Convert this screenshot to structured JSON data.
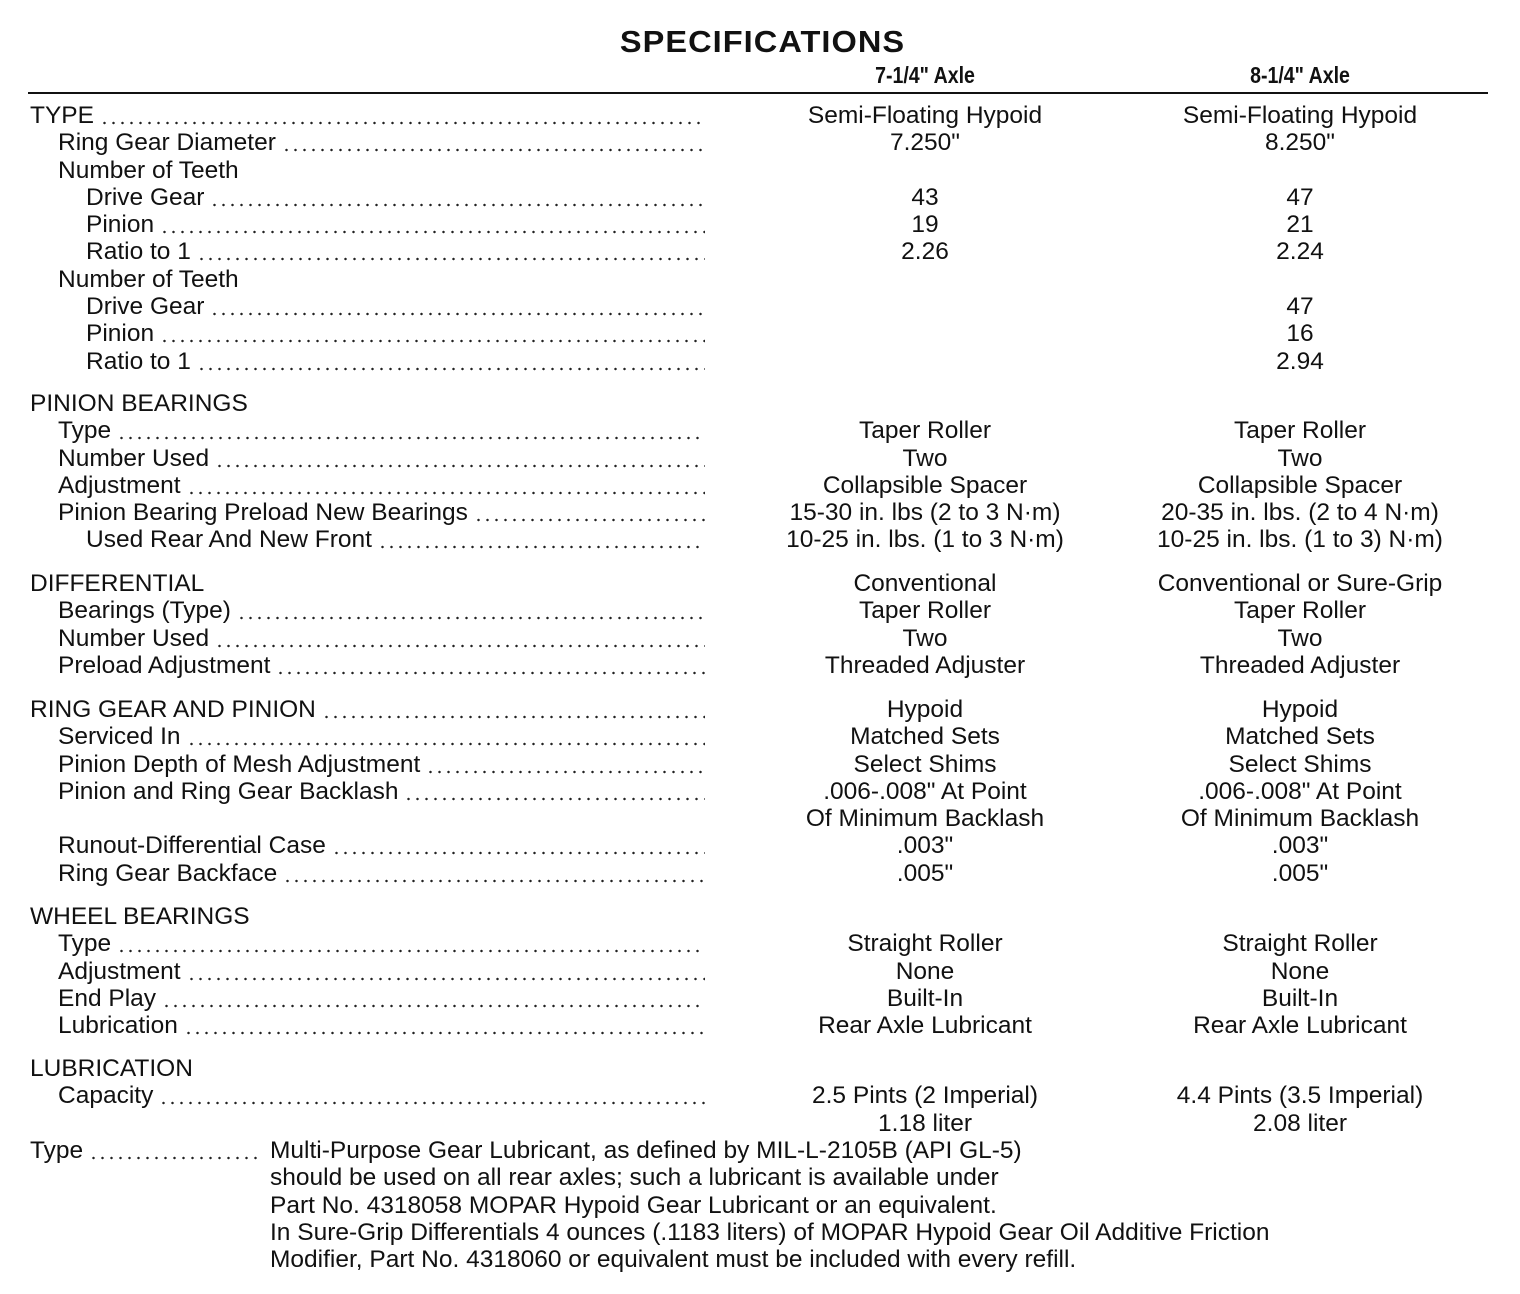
{
  "title": "SPECIFICATIONS",
  "columns": [
    "7-1/4\" Axle",
    "8-1/4\" Axle"
  ],
  "sections": [
    {
      "rows": [
        {
          "label": "TYPE",
          "indent": 0,
          "dots": true,
          "v1": "Semi-Floating Hypoid",
          "v2": "Semi-Floating Hypoid"
        },
        {
          "label": "Ring Gear Diameter",
          "indent": 1,
          "dots": true,
          "v1": "7.250\"",
          "v2": "8.250\""
        },
        {
          "label": "Number of Teeth",
          "indent": 1,
          "dots": false,
          "v1": "",
          "v2": ""
        },
        {
          "label": "Drive Gear",
          "indent": 2,
          "dots": true,
          "v1": "43",
          "v2": "47"
        },
        {
          "label": "Pinion",
          "indent": 2,
          "dots": true,
          "v1": "19",
          "v2": "21"
        },
        {
          "label": "Ratio to 1",
          "indent": 2,
          "dots": true,
          "v1": "2.26",
          "v2": "2.24"
        },
        {
          "label": "Number of Teeth",
          "indent": 1,
          "dots": false,
          "v1": "",
          "v2": ""
        },
        {
          "label": "Drive Gear",
          "indent": 2,
          "dots": true,
          "v1": "",
          "v2": "47"
        },
        {
          "label": "Pinion",
          "indent": 2,
          "dots": true,
          "v1": "",
          "v2": "16"
        },
        {
          "label": "Ratio to 1",
          "indent": 2,
          "dots": true,
          "v1": "",
          "v2": "2.94"
        }
      ]
    },
    {
      "rows": [
        {
          "label": "PINION BEARINGS",
          "indent": 0,
          "dots": false,
          "v1": "",
          "v2": ""
        },
        {
          "label": "Type",
          "indent": 1,
          "dots": true,
          "v1": "Taper Roller",
          "v2": "Taper Roller"
        },
        {
          "label": "Number Used",
          "indent": 1,
          "dots": true,
          "v1": "Two",
          "v2": "Two"
        },
        {
          "label": "Adjustment",
          "indent": 1,
          "dots": true,
          "v1": "Collapsible Spacer",
          "v2": "Collapsible Spacer"
        },
        {
          "label": "Pinion Bearing Preload New Bearings",
          "indent": 1,
          "dots": true,
          "v1": "15-30 in. lbs (2 to 3 N·m)",
          "v2": "20-35 in. lbs. (2 to 4 N·m)"
        },
        {
          "label": "Used Rear And New Front",
          "indent": 2,
          "dots": true,
          "v1": "10-25 in. lbs. (1 to 3 N·m)",
          "v2": "10-25 in. lbs. (1 to 3) N·m)"
        }
      ]
    },
    {
      "rows": [
        {
          "label": "DIFFERENTIAL",
          "indent": 0,
          "dots": false,
          "v1": "Conventional",
          "v2": "Conventional or Sure-Grip"
        },
        {
          "label": "Bearings (Type)",
          "indent": 1,
          "dots": true,
          "v1": "Taper Roller",
          "v2": "Taper Roller"
        },
        {
          "label": "Number Used",
          "indent": 1,
          "dots": true,
          "v1": "Two",
          "v2": "Two"
        },
        {
          "label": "Preload Adjustment",
          "indent": 1,
          "dots": true,
          "v1": "Threaded Adjuster",
          "v2": "Threaded Adjuster"
        }
      ]
    },
    {
      "rows": [
        {
          "label": "RING GEAR AND PINION",
          "indent": 0,
          "dots": true,
          "v1": "Hypoid",
          "v2": "Hypoid"
        },
        {
          "label": "Serviced In",
          "indent": 1,
          "dots": true,
          "v1": "Matched Sets",
          "v2": "Matched Sets"
        },
        {
          "label": "Pinion Depth of Mesh Adjustment",
          "indent": 1,
          "dots": true,
          "v1": "Select Shims",
          "v2": "Select Shims"
        },
        {
          "label": "Pinion and Ring Gear Backlash",
          "indent": 1,
          "dots": true,
          "v1": ".006-.008\" At Point",
          "v2": ".006-.008\" At Point"
        },
        {
          "label": "",
          "indent": 1,
          "dots": false,
          "v1": "Of Minimum Backlash",
          "v2": "Of Minimum Backlash"
        },
        {
          "label": "Runout-Differential Case",
          "indent": 1,
          "dots": true,
          "v1": ".003\"",
          "v2": ".003\""
        },
        {
          "label": "Ring Gear Backface",
          "indent": 1,
          "dots": true,
          "v1": ".005\"",
          "v2": ".005\""
        }
      ]
    },
    {
      "rows": [
        {
          "label": "WHEEL BEARINGS",
          "indent": 0,
          "dots": false,
          "v1": "",
          "v2": ""
        },
        {
          "label": "Type",
          "indent": 1,
          "dots": true,
          "v1": "Straight Roller",
          "v2": "Straight Roller"
        },
        {
          "label": "Adjustment",
          "indent": 1,
          "dots": true,
          "v1": "None",
          "v2": "None"
        },
        {
          "label": "End Play",
          "indent": 1,
          "dots": true,
          "v1": "Built-In",
          "v2": "Built-In"
        },
        {
          "label": "Lubrication",
          "indent": 1,
          "dots": true,
          "v1": "Rear Axle Lubricant",
          "v2": "Rear Axle Lubricant"
        }
      ]
    },
    {
      "rows": [
        {
          "label": "LUBRICATION",
          "indent": 0,
          "dots": false,
          "v1": "",
          "v2": ""
        },
        {
          "label": "Capacity",
          "indent": 1,
          "dots": true,
          "v1": "2.5 Pints (2 Imperial)",
          "v2": "4.4 Pints (3.5 Imperial)"
        },
        {
          "label": "",
          "indent": 1,
          "dots": false,
          "v1": "1.18 liter",
          "v2": "2.08 liter"
        }
      ]
    }
  ],
  "note": {
    "label": "Type",
    "lines": [
      "Multi-Purpose Gear Lubricant, as defined by MIL-L-2105B (API GL-5)",
      "should be used on all rear axles; such a lubricant is available under",
      "Part No. 4318058 MOPAR Hypoid Gear Lubricant or an equivalent.",
      "In Sure-Grip Differentials 4 ounces (.1183 liters) of MOPAR Hypoid Gear Oil Additive Friction",
      "Modifier, Part No. 4318060 or equivalent must be included with every refill."
    ]
  }
}
